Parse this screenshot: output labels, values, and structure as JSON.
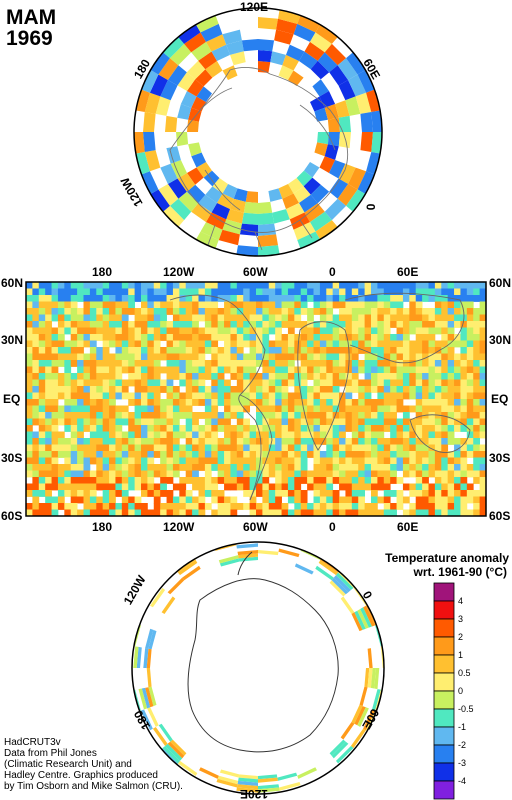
{
  "title": {
    "season": "MAM",
    "year": "1969"
  },
  "north_polar": {
    "labels": [
      "120E",
      "60E",
      "0",
      "120W",
      "180"
    ]
  },
  "map": {
    "top_labels": [
      "180",
      "120W",
      "60W",
      "0",
      "60E"
    ],
    "bottom_labels": [
      "180",
      "120W",
      "60W",
      "0",
      "60E"
    ],
    "lat_labels": [
      "60N",
      "30N",
      "EQ",
      "30S",
      "60S"
    ]
  },
  "south_polar": {
    "labels": [
      "120W",
      "0",
      "60E",
      "180",
      "120E"
    ]
  },
  "legend": {
    "title_line1": "Temperature anomaly",
    "title_line2": "wrt. 1961-90  (°C)",
    "levels": [
      "4",
      "3",
      "2",
      "1",
      "0.5",
      "0",
      "-0.5",
      "-1",
      "-2",
      "-3",
      "-4"
    ],
    "colors": [
      "#a0147a",
      "#f01010",
      "#ff5a00",
      "#ff9a1a",
      "#ffc030",
      "#ffee70",
      "#c8f060",
      "#50e8c0",
      "#60b8f0",
      "#2880f0",
      "#1030e8",
      "#8020e0"
    ]
  },
  "credits": [
    "HadCRUT3v",
    "Data from Phil Jones",
    "(Climatic Research Unit) and",
    "Hadley Centre.  Graphics produced",
    "by Tim Osborn and Mike Salmon (CRU)."
  ]
}
